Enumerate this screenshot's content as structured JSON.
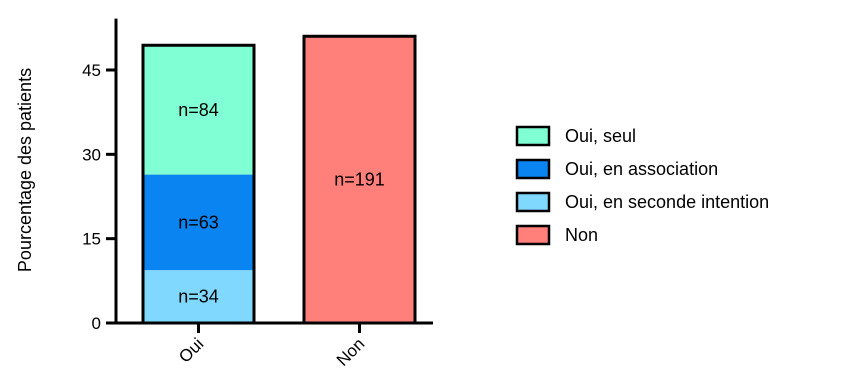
{
  "chart_data": {
    "type": "bar",
    "stacked": true,
    "title": "",
    "xlabel": "",
    "ylabel": "Pourcentage  des patients",
    "categories": [
      "Oui",
      "Non"
    ],
    "ylim": [
      0,
      52
    ],
    "yticks": [
      0,
      15,
      30,
      45
    ],
    "grid": false,
    "legend_position": "right",
    "series": [
      {
        "name": "Oui, en seconde intention",
        "color": "#80d8ff",
        "values": [
          9.4,
          0
        ],
        "labels": [
          "n=34",
          ""
        ]
      },
      {
        "name": "Oui, en association",
        "color": "#0a84f0",
        "values": [
          17.0,
          0
        ],
        "labels": [
          "n=63",
          ""
        ]
      },
      {
        "name": "Oui, seul",
        "color": "#80ffd4",
        "values": [
          23.0,
          0
        ],
        "labels": [
          "n=84",
          ""
        ]
      },
      {
        "name": "Non",
        "color": "#ff7f7a",
        "values": [
          0,
          51.0
        ],
        "labels": [
          "",
          "n=191"
        ]
      }
    ],
    "legend_order": [
      "Oui, seul",
      "Oui, en association",
      "Oui, en seconde intention",
      "Non"
    ]
  }
}
